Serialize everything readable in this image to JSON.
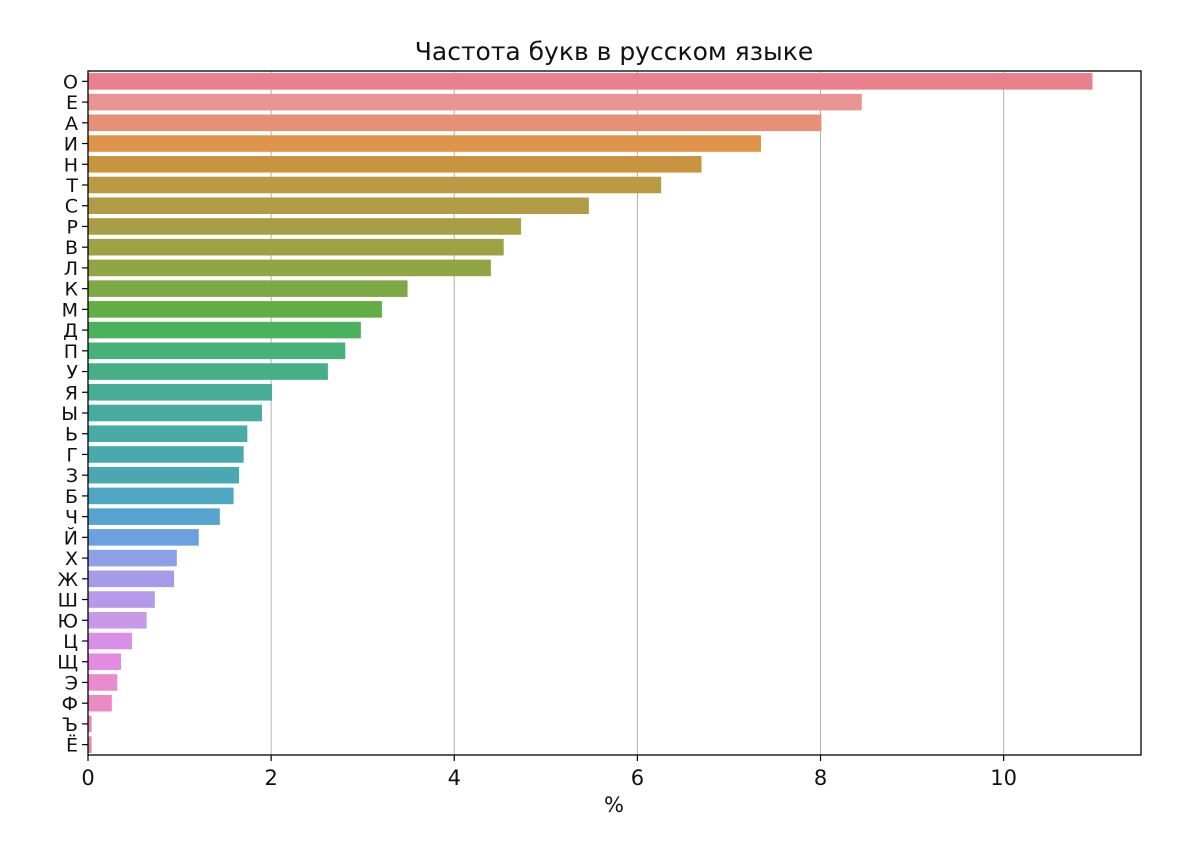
{
  "chart_data": {
    "type": "bar",
    "orientation": "horizontal",
    "title": "Частота букв в русском языке",
    "xlabel": "%",
    "ylabel": "",
    "xlim": [
      0,
      11.5
    ],
    "xticks": [
      "0",
      "2",
      "4",
      "6",
      "8",
      "10"
    ],
    "grid": "vertical",
    "legend": "none",
    "categories": [
      "О",
      "Е",
      "А",
      "И",
      "Н",
      "Т",
      "С",
      "Р",
      "В",
      "Л",
      "К",
      "М",
      "Д",
      "П",
      "У",
      "Я",
      "Ы",
      "Ь",
      "Г",
      "З",
      "Б",
      "Ч",
      "Й",
      "Х",
      "Ж",
      "Ш",
      "Ю",
      "Ц",
      "Щ",
      "Э",
      "Ф",
      "Ъ",
      "Ё"
    ],
    "values": [
      10.97,
      8.45,
      8.01,
      7.35,
      6.7,
      6.26,
      5.47,
      4.73,
      4.54,
      4.4,
      3.49,
      3.21,
      2.98,
      2.81,
      2.62,
      2.01,
      1.9,
      1.74,
      1.7,
      1.65,
      1.59,
      1.44,
      1.21,
      0.97,
      0.94,
      0.73,
      0.64,
      0.48,
      0.36,
      0.32,
      0.26,
      0.04,
      0.04
    ],
    "colors": [
      "#e8808e",
      "#e79590",
      "#e6907a",
      "#e0944a",
      "#c99440",
      "#bb9a45",
      "#b19c45",
      "#a89f44",
      "#9fa244",
      "#92a544",
      "#7ea844",
      "#62ae44",
      "#4bb15c",
      "#48b079",
      "#47ae88",
      "#48ad96",
      "#48ab9f",
      "#49aaa6",
      "#4aa9ac",
      "#4ba8b3",
      "#4ea6c0",
      "#55a3cf",
      "#6aa2e0",
      "#8ea0e6",
      "#a49ce8",
      "#b49ae9",
      "#c69ae9",
      "#d88fe8",
      "#e58be0",
      "#e88bcf",
      "#e98bc0",
      "#e88bb2",
      "#e48ea4"
    ]
  }
}
